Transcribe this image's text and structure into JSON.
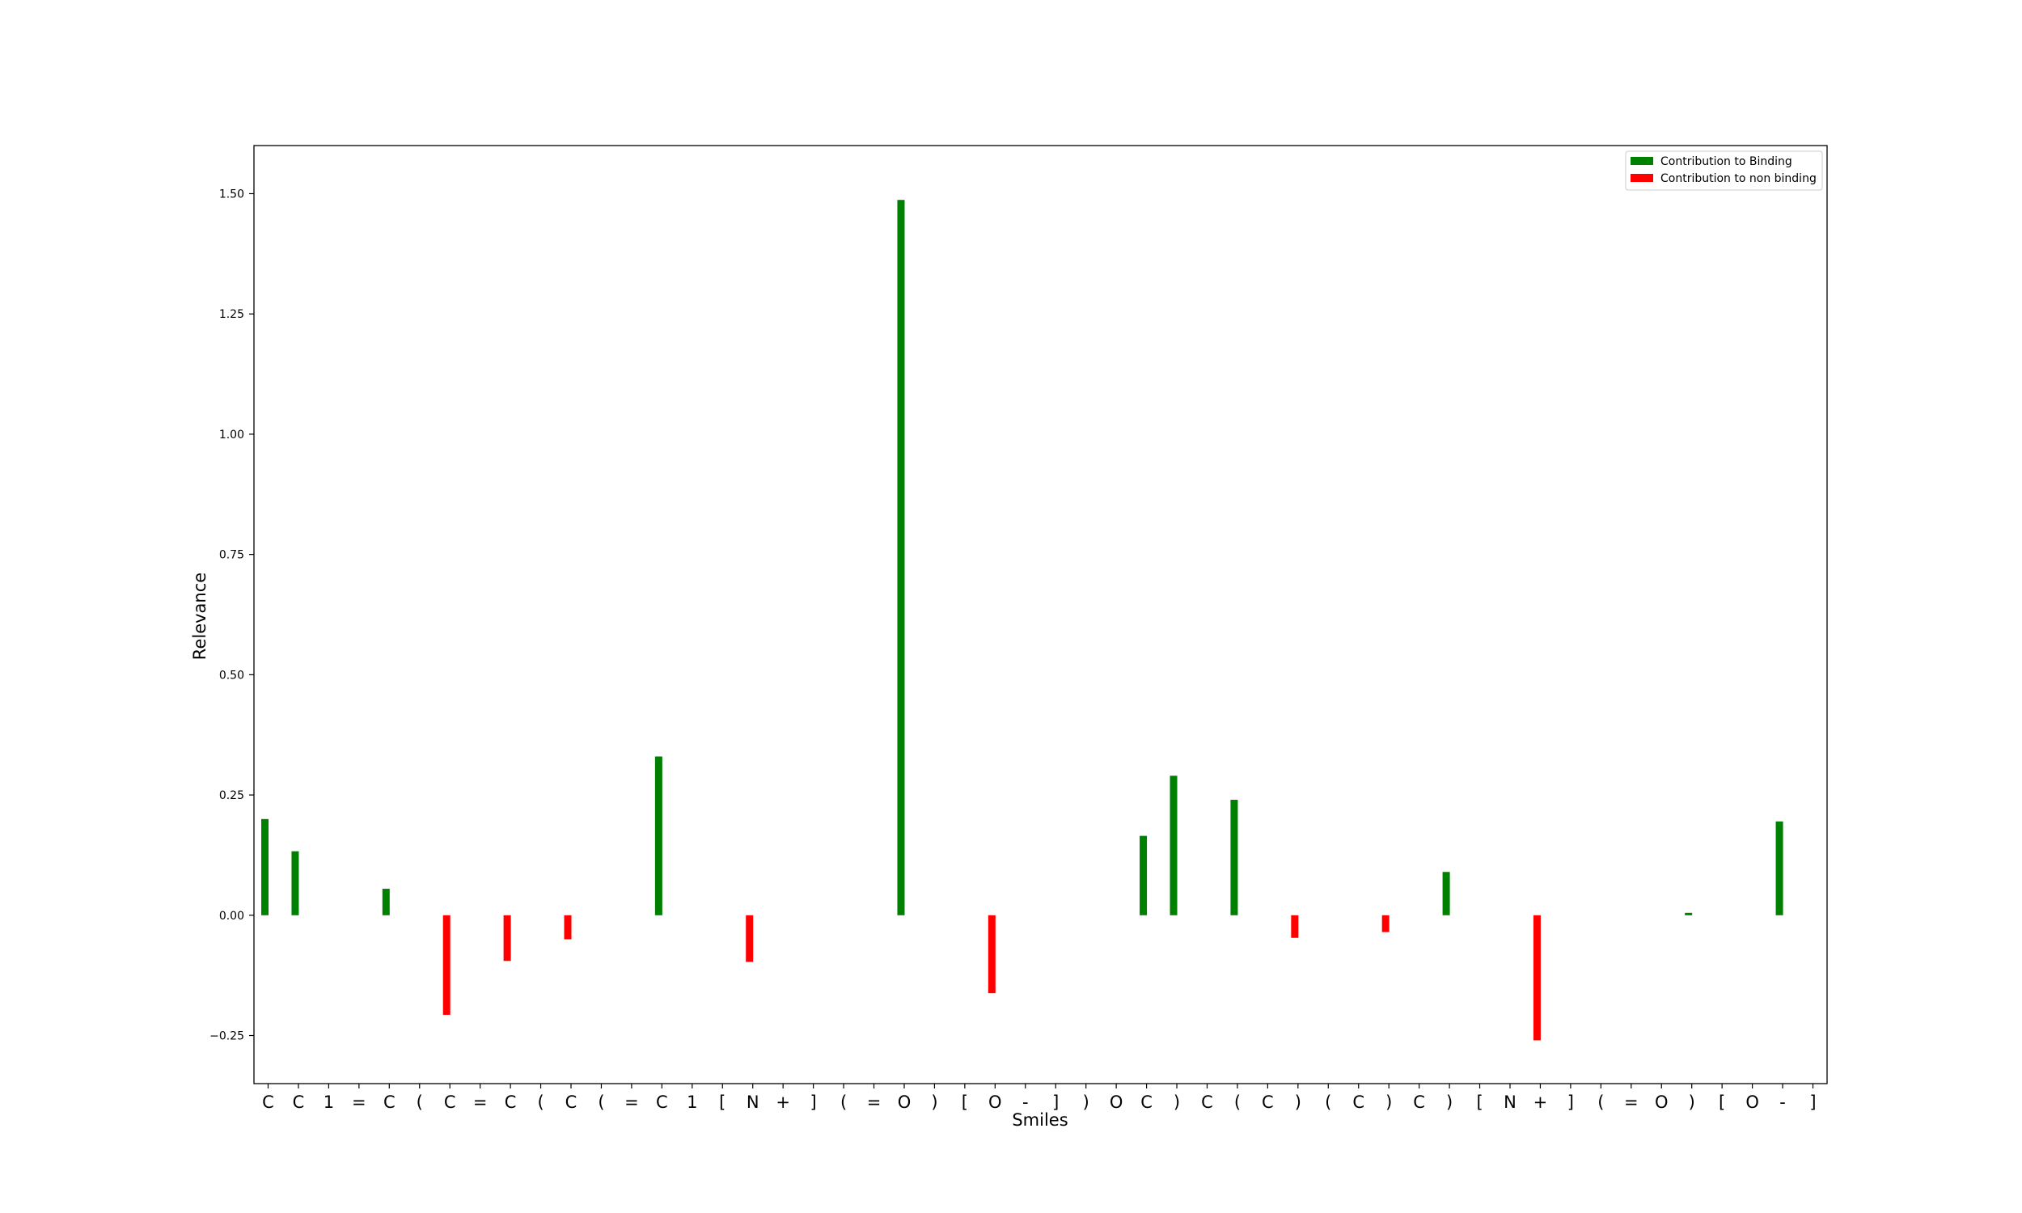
{
  "chart_data": {
    "type": "bar",
    "title": "",
    "xlabel": "Smiles",
    "ylabel": "Relevance",
    "ylim": [
      -0.35,
      1.6
    ],
    "yticks": [
      -0.25,
      0.0,
      0.25,
      0.5,
      0.75,
      1.0,
      1.25,
      1.5
    ],
    "ytick_labels": [
      "−0.25",
      "0.00",
      "0.25",
      "0.50",
      "0.75",
      "1.00",
      "1.25",
      "1.50"
    ],
    "categories": [
      "C",
      "C",
      "1",
      "=",
      "C",
      "(",
      "C",
      "=",
      "C",
      "(",
      "C",
      "(",
      "=",
      "C",
      "1",
      "[",
      "N",
      "+",
      "]",
      "(",
      "=",
      "O",
      ")",
      "[",
      "O",
      "-",
      "]",
      ")",
      "O",
      "C",
      ")",
      "C",
      "(",
      "C",
      ")",
      "(",
      "C",
      ")",
      "C",
      ")",
      "[",
      "N",
      "+",
      "]",
      "(",
      "=",
      "O",
      ")",
      "[",
      "O",
      "-",
      "]"
    ],
    "values": [
      0.2,
      0.133,
      0,
      0,
      0.055,
      0,
      -0.207,
      0,
      -0.095,
      0,
      -0.05,
      0,
      0,
      0.33,
      0,
      0,
      -0.097,
      0,
      0,
      0,
      0,
      1.487,
      0,
      0,
      -0.162,
      0,
      0,
      0,
      0,
      0.165,
      0.29,
      0,
      0.24,
      0,
      -0.047,
      0,
      0,
      -0.035,
      0,
      0.09,
      0,
      0,
      -0.26,
      0,
      0,
      0,
      0,
      0.005,
      0,
      0,
      0.195,
      0
    ],
    "series": [
      {
        "name": "Contribution to Binding",
        "color": "#008000"
      },
      {
        "name": "Contribution to non binding",
        "color": "#ff0000"
      }
    ],
    "legend_position": "top-right",
    "grid": false
  }
}
